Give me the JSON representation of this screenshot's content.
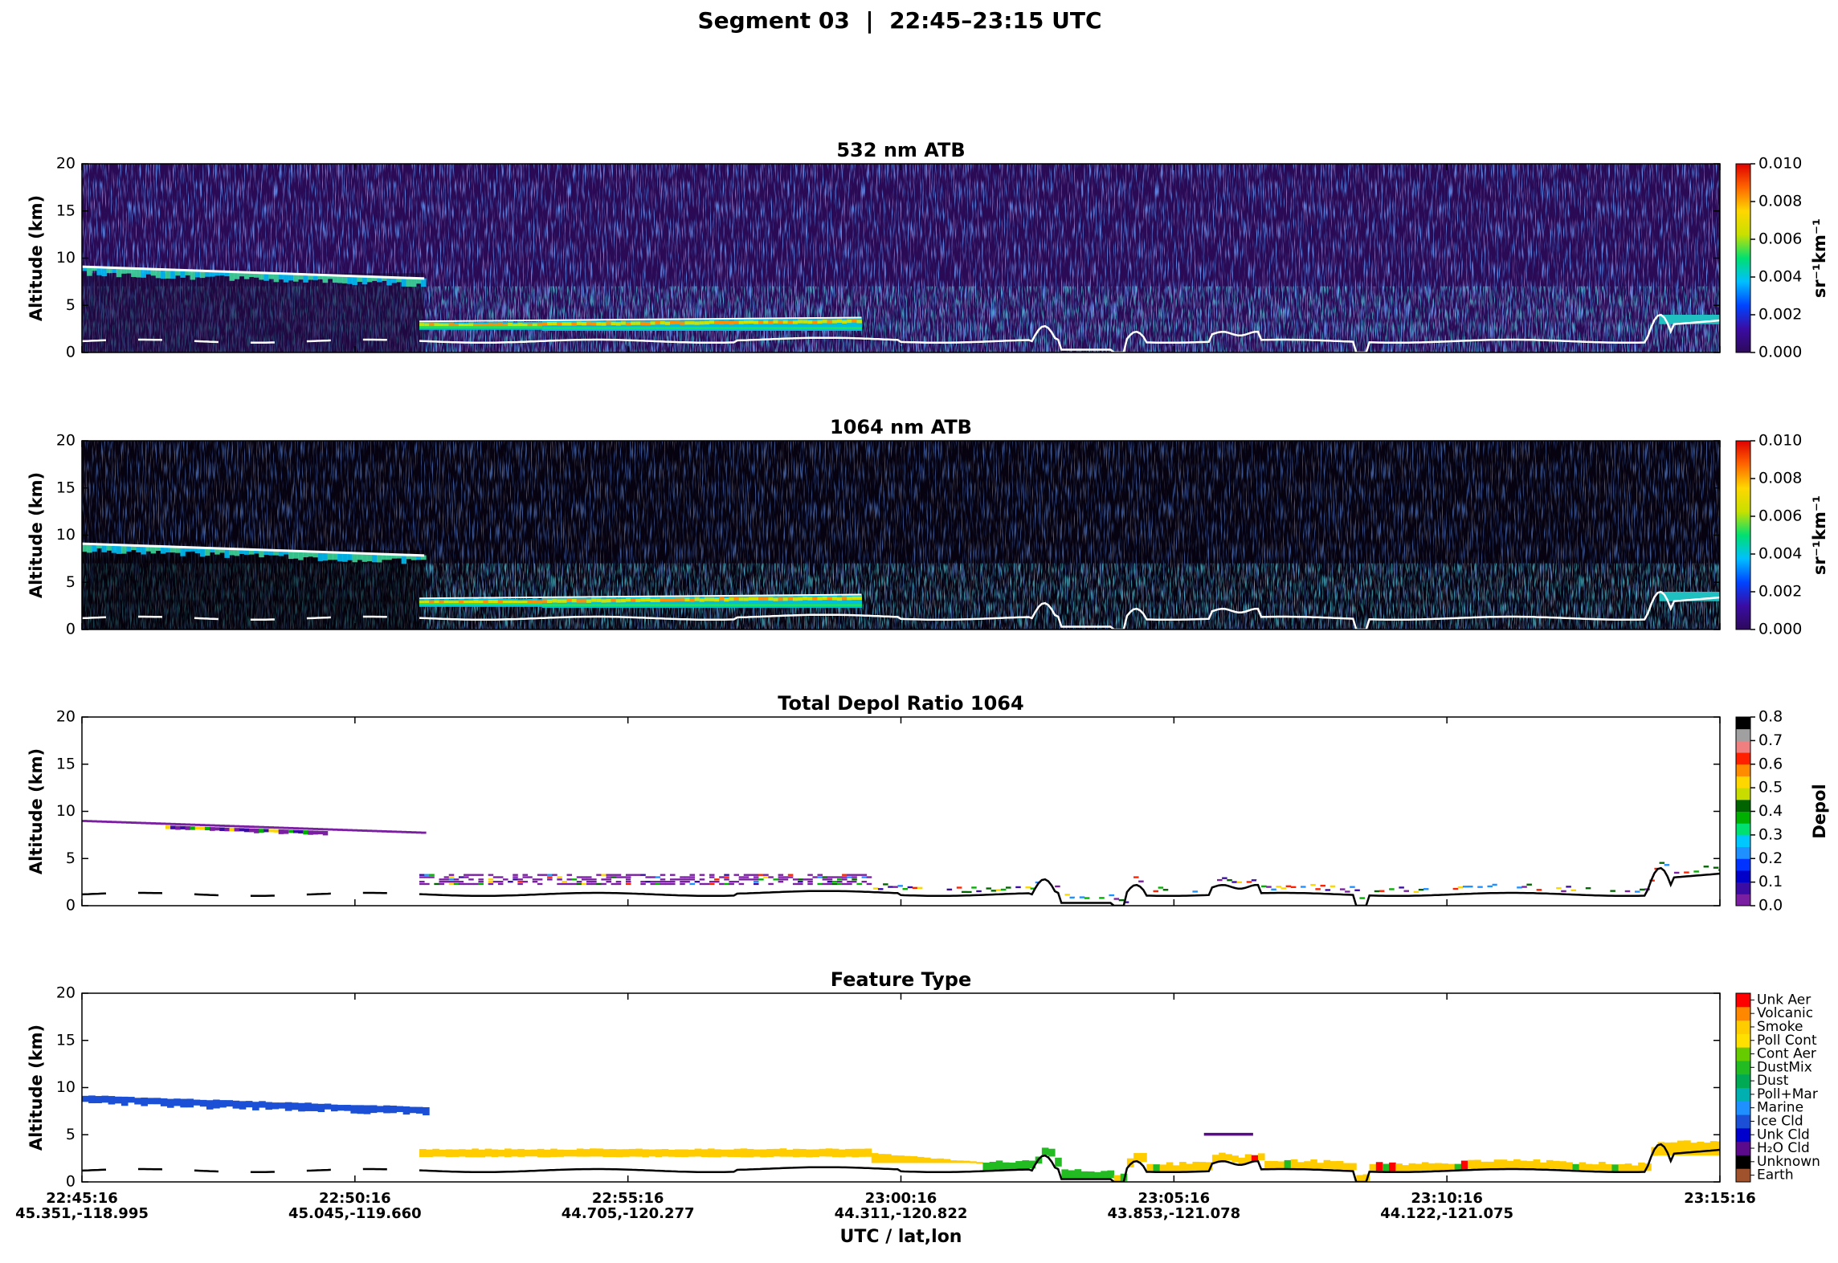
{
  "title": "Segment 03  |  22:45–23:15 UTC",
  "x_axis": {
    "label": "UTC / lat,lon",
    "ticks": [
      {
        "time": "22:45:16",
        "latlon": "45.351,-118.995"
      },
      {
        "time": "22:50:16",
        "latlon": "45.045,-119.660"
      },
      {
        "time": "22:55:16",
        "latlon": "44.705,-120.277"
      },
      {
        "time": "23:00:16",
        "latlon": "44.311,-120.822"
      },
      {
        "time": "23:05:16",
        "latlon": "43.853,-121.078"
      },
      {
        "time": "23:10:16",
        "latlon": "44.122,-121.075"
      },
      {
        "time": "23:15:16"
      }
    ]
  },
  "chart_data": [
    {
      "type": "curtain",
      "title": "532 nm ATB",
      "ylabel": "Altitude (km)",
      "ylim": [
        0,
        20
      ],
      "yticks": [
        0,
        5,
        10,
        15,
        20
      ],
      "colorbar": {
        "label": "sr⁻¹km⁻¹",
        "scale": "continuous",
        "lim": [
          0,
          0.01
        ],
        "ticks": [
          {
            "value": 0,
            "label": "0.000"
          },
          {
            "value": 0.002,
            "label": "0.002"
          },
          {
            "value": 0.004,
            "label": "0.004"
          },
          {
            "value": 0.006,
            "label": "0.006"
          },
          {
            "value": 0.008,
            "label": "0.008"
          },
          {
            "value": 0.01,
            "label": "0.010"
          }
        ],
        "colors": [
          "#2d0a5a",
          "#3a0ca3",
          "#0044ff",
          "#00bfff",
          "#00e070",
          "#c8e000",
          "#ffd700",
          "#ff6600",
          "#e00000"
        ]
      }
    },
    {
      "type": "curtain",
      "title": "1064 nm ATB",
      "ylabel": "Altitude (km)",
      "ylim": [
        0,
        20
      ],
      "yticks": [
        0,
        5,
        10,
        15,
        20
      ],
      "colorbar": {
        "label": "sr⁻¹km⁻¹",
        "scale": "continuous",
        "lim": [
          0,
          0.01
        ],
        "ticks": [
          {
            "value": 0,
            "label": "0.000"
          },
          {
            "value": 0.002,
            "label": "0.002"
          },
          {
            "value": 0.004,
            "label": "0.004"
          },
          {
            "value": 0.006,
            "label": "0.006"
          },
          {
            "value": 0.008,
            "label": "0.008"
          },
          {
            "value": 0.01,
            "label": "0.010"
          }
        ],
        "colors": [
          "#2d0a5a",
          "#3a0ca3",
          "#0044ff",
          "#00bfff",
          "#00e070",
          "#c8e000",
          "#ffd700",
          "#ff6600",
          "#e00000"
        ]
      }
    },
    {
      "type": "curtain",
      "title": "Total Depol Ratio 1064",
      "ylabel": "Altitude (km)",
      "ylim": [
        0,
        20
      ],
      "yticks": [
        0,
        5,
        10,
        15,
        20
      ],
      "colorbar": {
        "label": "Depol",
        "scale": "discrete",
        "lim": [
          0,
          0.8
        ],
        "ticks": [
          {
            "value": 0,
            "label": "0.0"
          },
          {
            "value": 0.1,
            "label": "0.1"
          },
          {
            "value": 0.2,
            "label": "0.2"
          },
          {
            "value": 0.3,
            "label": "0.3"
          },
          {
            "value": 0.4,
            "label": "0.4"
          },
          {
            "value": 0.5,
            "label": "0.5"
          },
          {
            "value": 0.6,
            "label": "0.6"
          },
          {
            "value": 0.7,
            "label": "0.7"
          },
          {
            "value": 0.8,
            "label": "0.8"
          }
        ],
        "colors": [
          "#7b1fa2",
          "#3a0ca3",
          "#0000c8",
          "#0033ff",
          "#1e90ff",
          "#00c8ff",
          "#00e070",
          "#00b000",
          "#006400",
          "#c8dc00",
          "#ffd700",
          "#ff8c00",
          "#ff2000",
          "#f08080",
          "#a0a0a0",
          "#000000"
        ]
      }
    },
    {
      "type": "curtain",
      "title": "Feature Type",
      "ylabel": "Altitude (km)",
      "ylim": [
        0,
        20
      ],
      "yticks": [
        0,
        5,
        10,
        15,
        20
      ],
      "colorbar": {
        "scale": "categorical",
        "categories": [
          "Earth",
          "Unknown",
          "H₂O Cld",
          "Unk Cld",
          "Ice Cld",
          "Marine",
          "Poll+Mar",
          "Dust",
          "DustMix",
          "Cont Aer",
          "Poll Cont",
          "Smoke",
          "Volcanic",
          "Unk Aer"
        ],
        "colors": [
          "#a0522d",
          "#000000",
          "#5a0a8a",
          "#0000cc",
          "#1a4fd6",
          "#1e90ff",
          "#00b0b0",
          "#00aa55",
          "#22bb22",
          "#66cc00",
          "#ffe000",
          "#ffcc00",
          "#ff8800",
          "#ff0000"
        ]
      }
    }
  ]
}
